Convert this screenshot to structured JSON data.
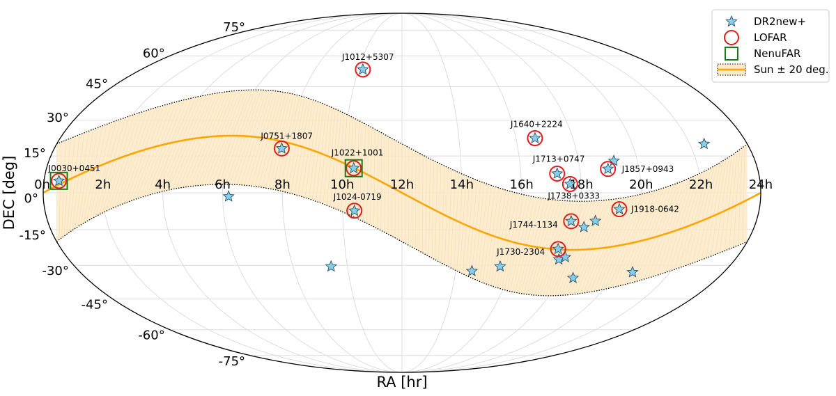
{
  "chart_data": {
    "type": "scatter",
    "projection": "mollweide",
    "xlabel": "RA [hr]",
    "ylabel": "DEC [deg]",
    "x_ticks": [
      "0h",
      "2h",
      "4h",
      "6h",
      "8h",
      "10h",
      "12h",
      "14h",
      "16h",
      "18h",
      "20h",
      "22h",
      "24h"
    ],
    "y_ticks": [
      "-75°",
      "-60°",
      "-45°",
      "-30°",
      "-15°",
      "0°",
      "15°",
      "30°",
      "45°",
      "60°",
      "75°"
    ],
    "x_range_hr": [
      0,
      24
    ],
    "y_range_deg": [
      -90,
      90
    ],
    "grid": true,
    "legend_position": "top-right",
    "legend": [
      {
        "label": "DR2new+",
        "marker": "star"
      },
      {
        "label": "LOFAR",
        "marker": "circle"
      },
      {
        "label": "NenuFAR",
        "marker": "square"
      },
      {
        "label": "Sun ± 20 deg.",
        "marker": "band"
      }
    ],
    "colors": {
      "star_fill": "#87ceeb",
      "lofar": "#e31a1c",
      "nenufar": "#1b7a1b",
      "sun_line": "#ffa500",
      "sun_band": "#fbe9c8"
    },
    "sun_band_width_deg": 20,
    "labeled_pulsars": [
      {
        "name": "J0030+0451",
        "ra": 0.5,
        "dec": 4.85,
        "lofar": true,
        "nenufar": true
      },
      {
        "name": "J0751+1807",
        "ra": 7.85,
        "dec": 18.1,
        "lofar": true,
        "nenufar": false
      },
      {
        "name": "J1012+5307",
        "ra": 10.2,
        "dec": 53.1,
        "lofar": true,
        "nenufar": false
      },
      {
        "name": "J1022+1001",
        "ra": 10.37,
        "dec": 10.0,
        "lofar": true,
        "nenufar": true
      },
      {
        "name": "J1024-0719",
        "ra": 10.4,
        "dec": -7.3,
        "lofar": true,
        "nenufar": false
      },
      {
        "name": "J1640+2224",
        "ra": 16.67,
        "dec": 22.4,
        "lofar": true,
        "nenufar": false
      },
      {
        "name": "J1713+0747",
        "ra": 17.22,
        "dec": 7.8,
        "lofar": true,
        "nenufar": false
      },
      {
        "name": "J1738+0333",
        "ra": 17.63,
        "dec": 3.55,
        "lofar": true,
        "nenufar": false
      },
      {
        "name": "J1744-1134",
        "ra": 17.73,
        "dec": -11.58,
        "lofar": true,
        "nenufar": false
      },
      {
        "name": "J1730-2304",
        "ra": 17.5,
        "dec": -23.1,
        "lofar": true,
        "nenufar": false
      },
      {
        "name": "J1857+0943",
        "ra": 18.95,
        "dec": 9.7,
        "lofar": true,
        "nenufar": false
      },
      {
        "name": "J1918-0642",
        "ra": 19.3,
        "dec": -6.7,
        "lofar": true,
        "nenufar": false
      }
    ],
    "other_pulsars": [
      {
        "ra": 6.2,
        "dec": -1.5
      },
      {
        "ra": 9.4,
        "dec": -30.5
      },
      {
        "ra": 14.6,
        "dec": -32.5
      },
      {
        "ra": 15.6,
        "dec": -30.5
      },
      {
        "ra": 17.65,
        "dec": -27.5
      },
      {
        "ra": 17.85,
        "dec": -26.5
      },
      {
        "ra": 18.2,
        "dec": -14.0
      },
      {
        "ra": 18.55,
        "dec": -11.5
      },
      {
        "ra": 18.5,
        "dec": -35.5
      },
      {
        "ra": 19.2,
        "dec": 13.0
      },
      {
        "ra": 20.6,
        "dec": -33.0
      },
      {
        "ra": 22.5,
        "dec": 20.0
      }
    ]
  }
}
